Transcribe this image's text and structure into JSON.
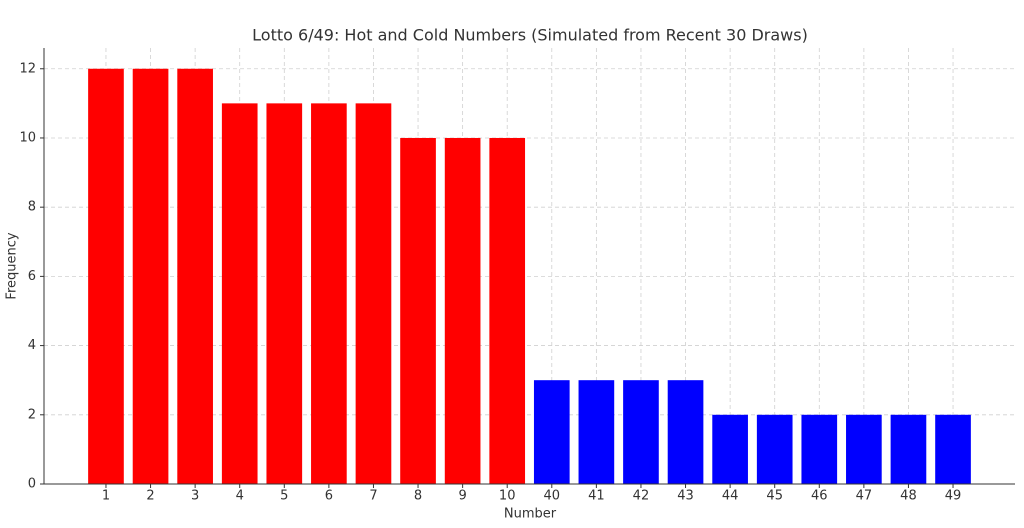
{
  "chart_data": {
    "type": "bar",
    "title": "Lotto 6/49: Hot and Cold Numbers (Simulated from Recent 30 Draws)",
    "xlabel": "Number",
    "ylabel": "Frequency",
    "categories": [
      "1",
      "2",
      "3",
      "4",
      "5",
      "6",
      "7",
      "8",
      "9",
      "10",
      "40",
      "41",
      "42",
      "43",
      "44",
      "45",
      "46",
      "47",
      "48",
      "49"
    ],
    "values": [
      12,
      12,
      12,
      11,
      11,
      11,
      11,
      10,
      10,
      10,
      3,
      3,
      3,
      3,
      2,
      2,
      2,
      2,
      2,
      2
    ],
    "colors": [
      "#ff0000",
      "#ff0000",
      "#ff0000",
      "#ff0000",
      "#ff0000",
      "#ff0000",
      "#ff0000",
      "#ff0000",
      "#ff0000",
      "#ff0000",
      "#0000ff",
      "#0000ff",
      "#0000ff",
      "#0000ff",
      "#0000ff",
      "#0000ff",
      "#0000ff",
      "#0000ff",
      "#0000ff",
      "#0000ff"
    ],
    "ylim": [
      0,
      12.6
    ],
    "yticks": [
      0,
      2,
      4,
      6,
      8,
      10,
      12
    ],
    "grid": true
  }
}
